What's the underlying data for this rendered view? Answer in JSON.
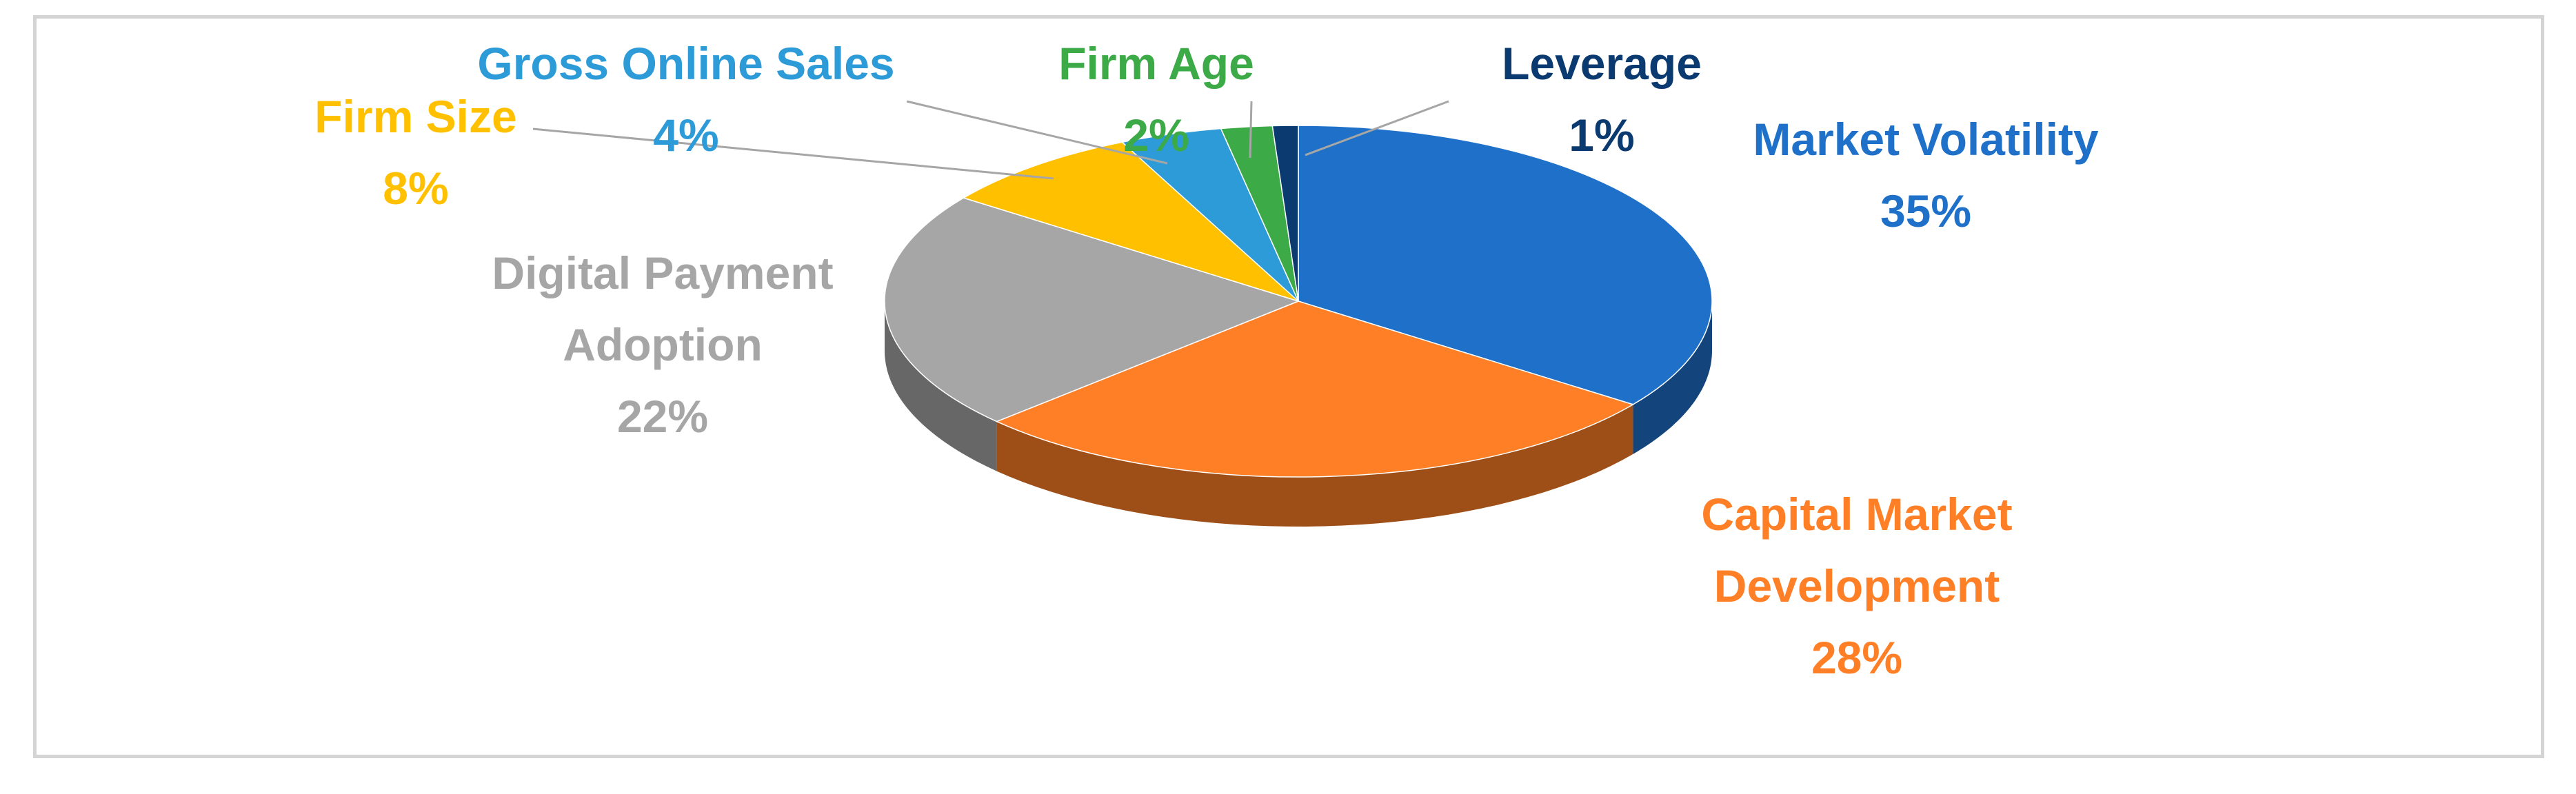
{
  "chart_data": {
    "type": "pie",
    "title": "",
    "slices": [
      {
        "label": "Market Volatility",
        "label_lines": [
          "Market Volatility"
        ],
        "percent_label": "35%",
        "value": 35,
        "color": "#1F70C8"
      },
      {
        "label": "Capital Market Development",
        "label_lines": [
          "Capital Market",
          "Development"
        ],
        "percent_label": "28%",
        "value": 28,
        "color": "#FF7F27"
      },
      {
        "label": "Digital Payment Adoption",
        "label_lines": [
          "Digital Payment",
          "Adoption"
        ],
        "percent_label": "22%",
        "value": 22,
        "color": "#A6A6A6"
      },
      {
        "label": "Firm Size",
        "label_lines": [
          "Firm Size"
        ],
        "percent_label": "8%",
        "value": 8,
        "color": "#FFC000"
      },
      {
        "label": "Gross Online Sales",
        "label_lines": [
          "Gross Online Sales"
        ],
        "percent_label": "4%",
        "value": 4,
        "color": "#2E9BD9"
      },
      {
        "label": "Firm Age",
        "label_lines": [
          "Firm Age"
        ],
        "percent_label": "2%",
        "value": 2,
        "color": "#3BAA47"
      },
      {
        "label": "Leverage",
        "label_lines": [
          "Leverage"
        ],
        "percent_label": "1%",
        "value": 1,
        "color": "#0B3A70"
      }
    ]
  }
}
